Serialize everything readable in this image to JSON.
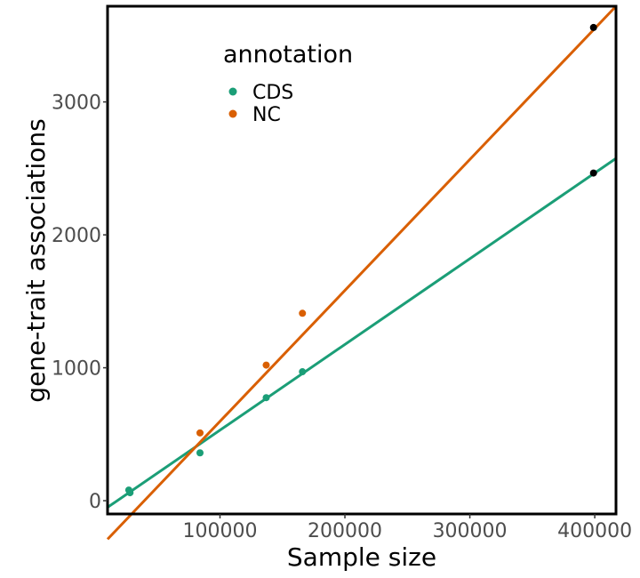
{
  "chart_data": {
    "type": "scatter",
    "xlabel": "Sample size",
    "ylabel": "gene-trait associations",
    "xlim": [
      10000,
      417000
    ],
    "ylim": [
      -100,
      3720
    ],
    "xticks": [
      100000,
      200000,
      300000,
      400000
    ],
    "xtick_labels": [
      "100000",
      "200000",
      "300000",
      "400000"
    ],
    "yticks": [
      0,
      1000,
      2000,
      3000
    ],
    "ytick_labels": [
      "0",
      "1000",
      "2000",
      "3000"
    ],
    "grid": false,
    "legend": {
      "title": "annotation",
      "position": "top-left"
    },
    "series": [
      {
        "name": "CDS",
        "color": "#1b9e77",
        "points": [
          {
            "x": 27000,
            "y": 80
          },
          {
            "x": 28000,
            "y": 60
          },
          {
            "x": 84000,
            "y": 360
          },
          {
            "x": 137000,
            "y": 775
          },
          {
            "x": 166000,
            "y": 970
          }
        ],
        "fit_line": {
          "x": [
            10000,
            417000
          ],
          "y": [
            -50,
            2575
          ]
        }
      },
      {
        "name": "NC",
        "color": "#d95f02",
        "points": [
          {
            "x": 84000,
            "y": 510
          },
          {
            "x": 137000,
            "y": 1020
          },
          {
            "x": 166000,
            "y": 1410
          }
        ],
        "fit_line": {
          "x": [
            10000,
            417000
          ],
          "y": [
            -290,
            3720
          ]
        }
      }
    ],
    "extrapolated_points": {
      "color": "#000000",
      "points": [
        {
          "x": 399000,
          "y": 3560
        },
        {
          "x": 399000,
          "y": 2465
        }
      ]
    }
  }
}
